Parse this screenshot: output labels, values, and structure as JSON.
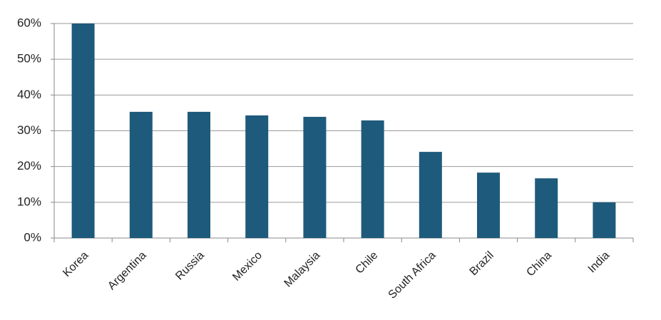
{
  "chart_data": {
    "type": "bar",
    "categories": [
      "Korea",
      "Argentina",
      "Russia",
      "Mexico",
      "Malaysia",
      "Chile",
      "South Africa",
      "Brazil",
      "China",
      "India"
    ],
    "values": [
      60,
      35.3,
      35.3,
      34.3,
      33.9,
      32.9,
      24.1,
      18.3,
      16.7,
      10.0
    ],
    "color": "#1e5a7b",
    "ylim": [
      0,
      60
    ],
    "yticks": [
      {
        "value": 0,
        "label": "0%"
      },
      {
        "value": 10,
        "label": "10%"
      },
      {
        "value": 20,
        "label": "20%"
      },
      {
        "value": 30,
        "label": "30%"
      },
      {
        "value": 40,
        "label": "40%"
      },
      {
        "value": 50,
        "label": "50%"
      },
      {
        "value": 60,
        "label": "60%"
      }
    ],
    "grid": true
  }
}
